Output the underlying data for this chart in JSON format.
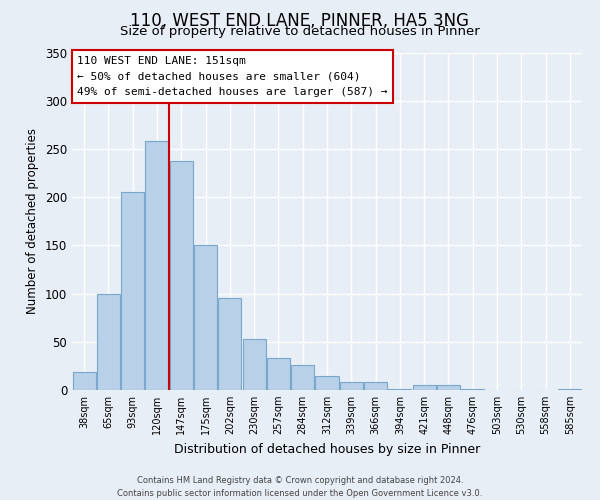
{
  "title": "110, WEST END LANE, PINNER, HA5 3NG",
  "subtitle": "Size of property relative to detached houses in Pinner",
  "xlabel": "Distribution of detached houses by size in Pinner",
  "ylabel": "Number of detached properties",
  "bar_color": "#b8d0e8",
  "bar_edgecolor": "#7aa8cc",
  "categories": [
    "38sqm",
    "65sqm",
    "93sqm",
    "120sqm",
    "147sqm",
    "175sqm",
    "202sqm",
    "230sqm",
    "257sqm",
    "284sqm",
    "312sqm",
    "339sqm",
    "366sqm",
    "394sqm",
    "421sqm",
    "448sqm",
    "476sqm",
    "503sqm",
    "530sqm",
    "558sqm",
    "585sqm"
  ],
  "values": [
    19,
    100,
    205,
    258,
    237,
    150,
    95,
    53,
    33,
    26,
    15,
    8,
    8,
    1,
    5,
    5,
    1,
    0,
    0,
    0,
    1
  ],
  "ylim": [
    0,
    350
  ],
  "yticks": [
    0,
    50,
    100,
    150,
    200,
    250,
    300,
    350
  ],
  "vline_color": "#cc0000",
  "vline_x_index": 3.5,
  "annotation_title": "110 WEST END LANE: 151sqm",
  "annotation_line1": "← 50% of detached houses are smaller (604)",
  "annotation_line2": "49% of semi-detached houses are larger (587) →",
  "annotation_box_color": "#ffffff",
  "annotation_box_edgecolor": "#cc0000",
  "footer_line1": "Contains HM Land Registry data © Crown copyright and database right 2024.",
  "footer_line2": "Contains public sector information licensed under the Open Government Licence v3.0.",
  "background_color": "#e8eef6",
  "plot_background_color": "#e8eef6",
  "grid_color": "#ffffff",
  "title_fontsize": 12,
  "subtitle_fontsize": 9.5
}
